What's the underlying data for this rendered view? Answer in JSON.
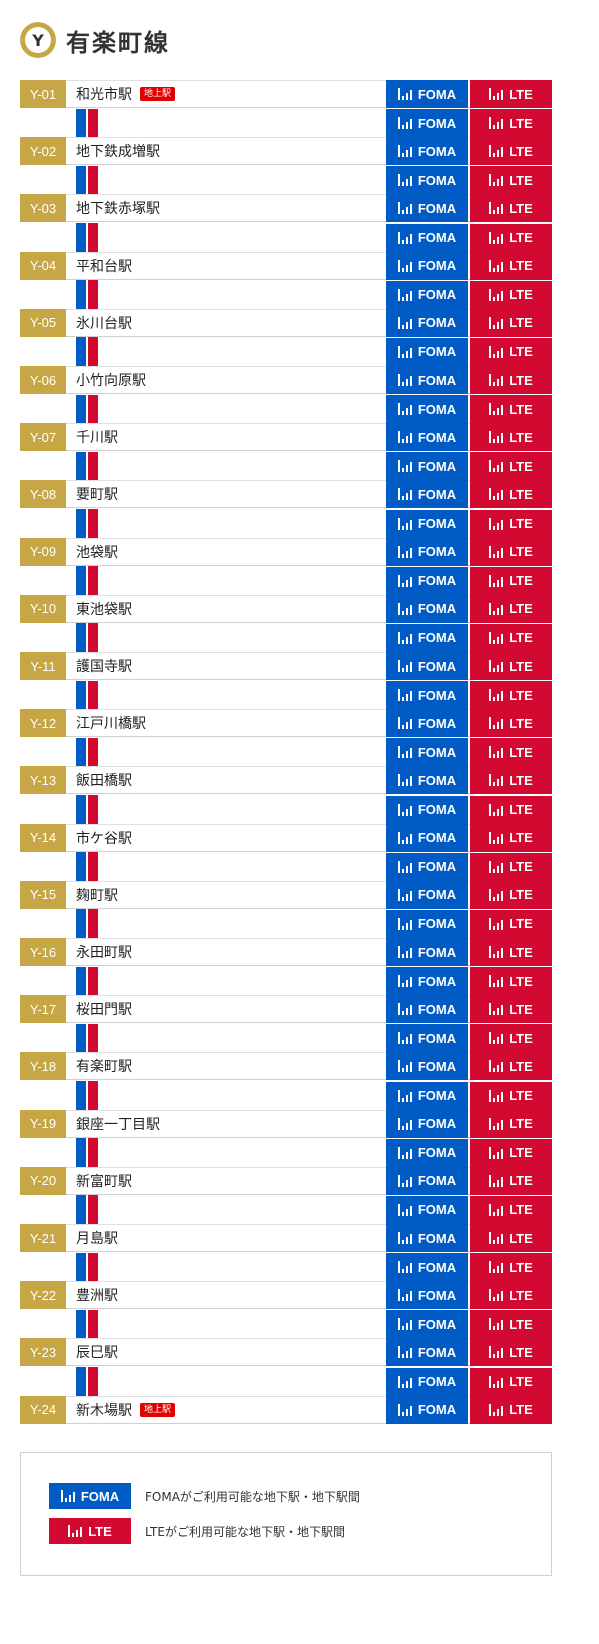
{
  "header": {
    "badge": "Y",
    "title": "有楽町線"
  },
  "colors": {
    "line": "#C7A646",
    "foma": "#005BC5",
    "lte": "#D20A32",
    "white": "#FFFFFF"
  },
  "badges": {
    "foma": "FOMA",
    "lte": "LTE",
    "antenna_icon": "antenna-signal-icon"
  },
  "stations": [
    {
      "code": "Y-01",
      "name": "和光市駅",
      "ground": "地上駅"
    },
    {
      "code": "Y-02",
      "name": "地下鉄成増駅"
    },
    {
      "code": "Y-03",
      "name": "地下鉄赤塚駅"
    },
    {
      "code": "Y-04",
      "name": "平和台駅"
    },
    {
      "code": "Y-05",
      "name": "氷川台駅"
    },
    {
      "code": "Y-06",
      "name": "小竹向原駅"
    },
    {
      "code": "Y-07",
      "name": "千川駅"
    },
    {
      "code": "Y-08",
      "name": "要町駅"
    },
    {
      "code": "Y-09",
      "name": "池袋駅"
    },
    {
      "code": "Y-10",
      "name": "東池袋駅"
    },
    {
      "code": "Y-11",
      "name": "護国寺駅"
    },
    {
      "code": "Y-12",
      "name": "江戸川橋駅"
    },
    {
      "code": "Y-13",
      "name": "飯田橋駅"
    },
    {
      "code": "Y-14",
      "name": "市ケ谷駅"
    },
    {
      "code": "Y-15",
      "name": "麹町駅"
    },
    {
      "code": "Y-16",
      "name": "永田町駅"
    },
    {
      "code": "Y-17",
      "name": "桜田門駅"
    },
    {
      "code": "Y-18",
      "name": "有楽町駅"
    },
    {
      "code": "Y-19",
      "name": "銀座一丁目駅"
    },
    {
      "code": "Y-20",
      "name": "新富町駅"
    },
    {
      "code": "Y-21",
      "name": "月島駅"
    },
    {
      "code": "Y-22",
      "name": "豊洲駅"
    },
    {
      "code": "Y-23",
      "name": "辰巳駅"
    },
    {
      "code": "Y-24",
      "name": "新木場駅",
      "ground": "地上駅"
    }
  ],
  "legend": [
    {
      "badge": "FOMA",
      "type": "foma",
      "text": "FOMAがご利用可能な地下駅・地下駅間"
    },
    {
      "badge": "LTE",
      "type": "lte",
      "text": "LTEがご利用可能な地下駅・地下駅間"
    }
  ]
}
